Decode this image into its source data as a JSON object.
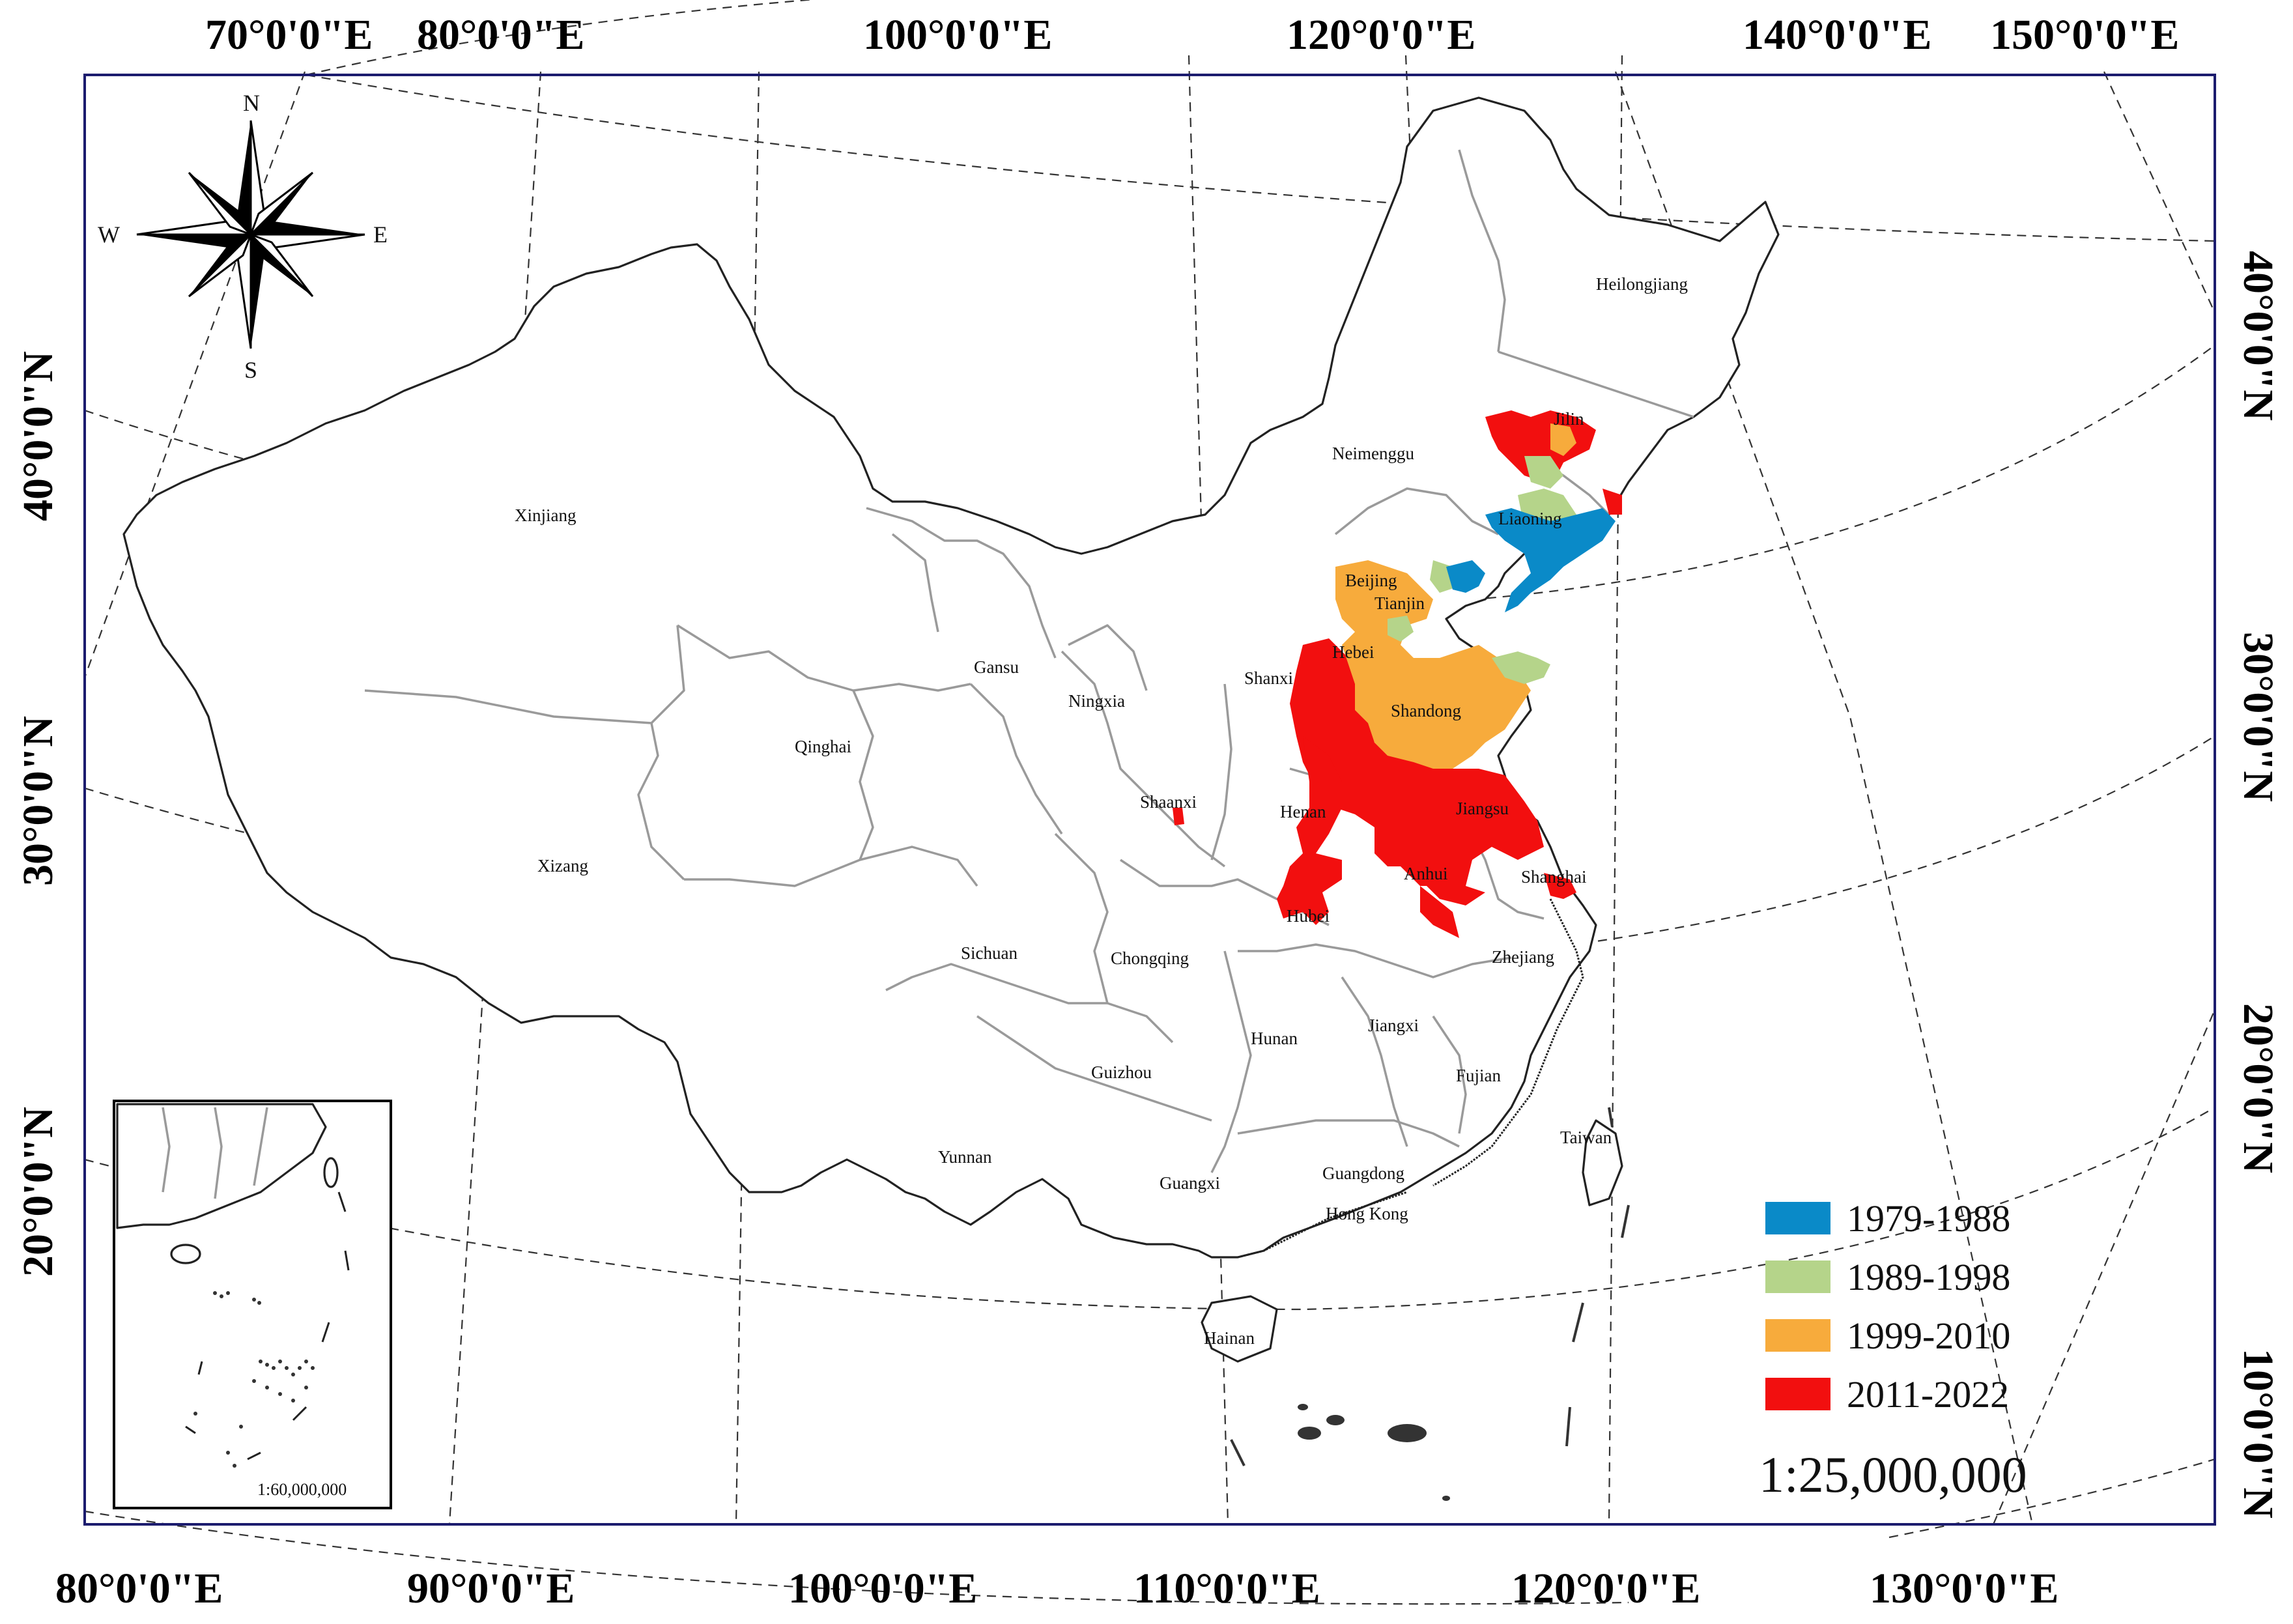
{
  "top_longitude_labels": [
    "70°0'0\"E",
    "80°0'0\"E",
    "100°0'0\"E",
    "120°0'0\"E",
    "140°0'0\"E",
    "150°0'0\"E"
  ],
  "bottom_longitude_labels": [
    "80°0'0\"E",
    "90°0'0\"E",
    "100°0'0\"E",
    "110°0'0\"E",
    "120°0'0\"E",
    "130°0'0\"E"
  ],
  "left_latitude_labels": [
    "40°0'0\"N",
    "30°0'0\"N",
    "20°0'0\"N"
  ],
  "right_latitude_labels": [
    "40°0'0\"N",
    "30°0'0\"N",
    "20°0'0\"N",
    "10°0'0\"N"
  ],
  "compass": {
    "n": "N",
    "s": "S",
    "e": "E",
    "w": "W"
  },
  "provinces": {
    "heilongjiang": "Heilongjiang",
    "jilin": "Jilin",
    "neimenggu": "Neimenggu",
    "liaoning": "Liaoning",
    "xinjiang": "Xinjiang",
    "beijing": "Beijing",
    "tianjin": "Tianjin",
    "hebei": "Hebei",
    "gansu": "Gansu",
    "ningxia": "Ningxia",
    "shanxi": "Shanxi",
    "shandong": "Shandong",
    "qinghai": "Qinghai",
    "shaanxi": "Shaanxi",
    "henan": "Henan",
    "jiangsu": "Jiangsu",
    "xizang": "Xizang",
    "anhui": "Anhui",
    "shanghai": "Shanghai",
    "hubei": "Hubei",
    "sichuan": "Sichuan",
    "chongqing": "Chongqing",
    "zhejiang": "Zhejiang",
    "hunan": "Hunan",
    "jiangxi": "Jiangxi",
    "guizhou": "Guizhou",
    "fujian": "Fujian",
    "taiwan": "Taiwan",
    "yunnan": "Yunnan",
    "guangxi": "Guangxi",
    "guangdong": "Guangdong",
    "hongkong": "Hong Kong",
    "hainan": "Hainan"
  },
  "legend": [
    {
      "label": "1979-1988",
      "color": "#0a8ac8"
    },
    {
      "label": "1989-1998",
      "color": "#b5d48a"
    },
    {
      "label": "1999-2010",
      "color": "#f7ab3c"
    },
    {
      "label": "2011-2022",
      "color": "#f20f0f"
    }
  ],
  "scale": "1:25,000,000",
  "inset_scale": "1:60,000,000"
}
